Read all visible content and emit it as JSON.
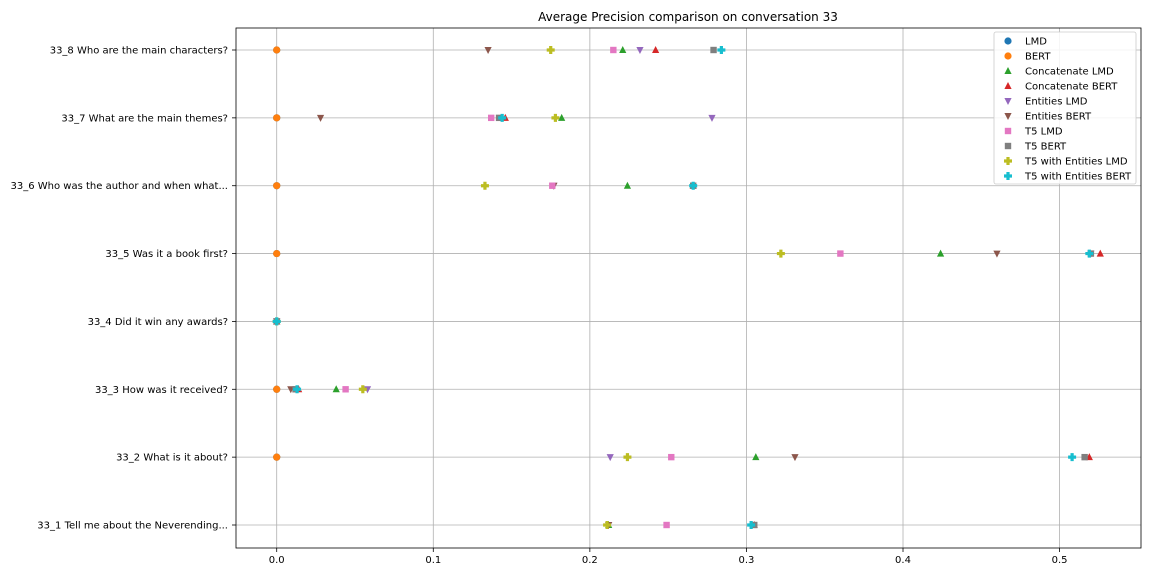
{
  "chart_data": {
    "type": "scatter",
    "title": "Average Precision comparison on conversation 33",
    "xlabel": "",
    "ylabel": "",
    "xlim": [
      -0.026,
      0.552
    ],
    "x_ticks": [
      0.0,
      0.1,
      0.2,
      0.3,
      0.4,
      0.5
    ],
    "x_tick_labels": [
      "0.0",
      "0.1",
      "0.2",
      "0.3",
      "0.4",
      "0.5"
    ],
    "categories": [
      "33_1 Tell me about the Neverending...",
      "33_2 What is it about?",
      "33_3 How was it received?",
      "33_4 Did it win any awards?",
      "33_5 Was it a book first?",
      "33_6 Who was the author and when what...",
      "33_7 What are the main themes?",
      "33_8 Who are the main characters?"
    ],
    "grid": true,
    "legend_position": "top-right",
    "series": [
      {
        "name": "LMD",
        "marker": "circle",
        "color": "#1f77b4",
        "values": [
          null,
          0.0,
          0.0,
          0.0,
          0.0,
          0.0,
          0.0,
          0.0
        ]
      },
      {
        "name": "BERT",
        "marker": "circle",
        "color": "#ff7f0e",
        "values": [
          null,
          0.0,
          0.0,
          0.0,
          0.0,
          0.0,
          0.0,
          0.0
        ]
      },
      {
        "name": "Concatenate LMD",
        "marker": "triangle-up",
        "color": "#2ca02c",
        "values": [
          0.212,
          0.306,
          0.038,
          0.0,
          0.424,
          0.224,
          0.182,
          0.221
        ]
      },
      {
        "name": "Concatenate BERT",
        "marker": "triangle-up",
        "color": "#d62728",
        "values": [
          0.305,
          0.519,
          0.014,
          0.0,
          0.526,
          0.266,
          0.146,
          0.242
        ]
      },
      {
        "name": "Entities LMD",
        "marker": "triangle-down",
        "color": "#9467bd",
        "values": [
          0.212,
          0.213,
          0.058,
          0.0,
          0.52,
          0.177,
          0.278,
          0.232
        ]
      },
      {
        "name": "Entities BERT",
        "marker": "triangle-down",
        "color": "#8c564b",
        "values": [
          0.212,
          0.331,
          0.009,
          0.0,
          0.46,
          0.177,
          0.028,
          0.135
        ]
      },
      {
        "name": "T5 LMD",
        "marker": "square",
        "color": "#e377c2",
        "values": [
          0.249,
          0.252,
          0.044,
          0.0,
          0.36,
          0.176,
          0.137,
          0.215
        ]
      },
      {
        "name": "T5 BERT",
        "marker": "square",
        "color": "#7f7f7f",
        "values": [
          0.305,
          0.516,
          0.012,
          0.0,
          0.52,
          0.266,
          0.142,
          0.279
        ]
      },
      {
        "name": "T5 with Entities LMD",
        "marker": "plus",
        "color": "#bcbd22",
        "values": [
          0.211,
          0.224,
          0.055,
          0.0,
          0.322,
          0.133,
          0.178,
          0.175
        ]
      },
      {
        "name": "T5 with Entities BERT",
        "marker": "plus",
        "color": "#17becf",
        "values": [
          0.303,
          0.508,
          0.013,
          0.0,
          0.519,
          0.266,
          0.144,
          0.284
        ]
      }
    ]
  }
}
